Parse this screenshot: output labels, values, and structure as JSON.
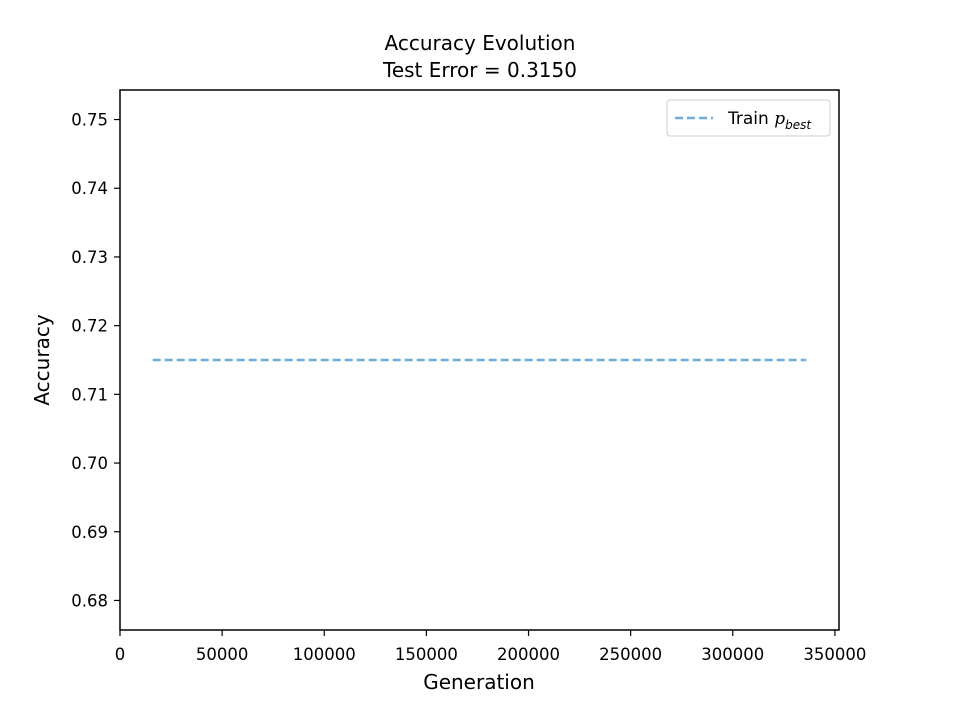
{
  "chart_data": {
    "type": "line",
    "title": "Accuracy Evolution",
    "subtitle": "Test Error = 0.3150",
    "xlabel": "Generation",
    "ylabel": "Accuracy",
    "xlim": [
      0,
      352000
    ],
    "ylim": [
      0.6757,
      0.7543
    ],
    "x_ticks": [
      0,
      50000,
      100000,
      150000,
      200000,
      250000,
      300000,
      350000
    ],
    "x_tick_labels": [
      "0",
      "50000",
      "100000",
      "150000",
      "200000",
      "250000",
      "300000",
      "350000"
    ],
    "y_ticks": [
      0.68,
      0.69,
      0.7,
      0.71,
      0.72,
      0.73,
      0.74,
      0.75
    ],
    "y_tick_labels": [
      "0.68",
      "0.69",
      "0.70",
      "0.71",
      "0.72",
      "0.73",
      "0.74",
      "0.75"
    ],
    "grid": false,
    "legend_position": "top-right",
    "series": [
      {
        "name": "Train p_best",
        "legend_prefix": "Train ",
        "legend_symbol": "p",
        "legend_subscript": "best",
        "color": "#6baed6",
        "line_style": "dashed",
        "x": [
          16000,
          336000
        ],
        "y": [
          0.715,
          0.715
        ]
      }
    ]
  }
}
